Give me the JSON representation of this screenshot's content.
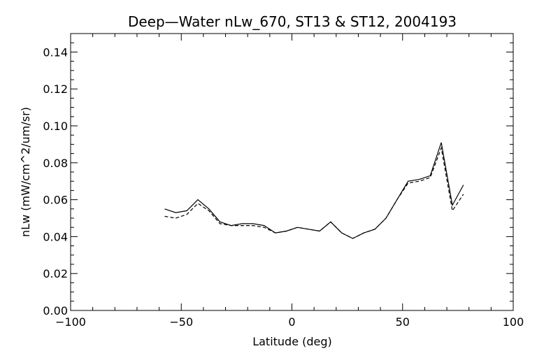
{
  "chart_data": {
    "type": "line",
    "title": "Deep—Water nLw_670, ST13 & ST12, 2004193",
    "xlabel": "Latitude (deg)",
    "ylabel": "nLw (mW/cm^2/um/sr)",
    "xlim": [
      -100,
      100
    ],
    "ylim": [
      0.0,
      0.15
    ],
    "x_ticks": [
      -100,
      -50,
      0,
      50,
      100
    ],
    "x_tick_labels": [
      "−100",
      "−50",
      "0",
      "50",
      "100"
    ],
    "y_ticks": [
      0.0,
      0.02,
      0.04,
      0.06,
      0.08,
      0.1,
      0.12,
      0.14
    ],
    "y_tick_labels": [
      "0.00",
      "0.02",
      "0.04",
      "0.06",
      "0.08",
      "0.10",
      "0.12",
      "0.14"
    ],
    "grid": false,
    "series": [
      {
        "style": "solid",
        "color": "#000000",
        "x": [
          -57.5,
          -52.5,
          -47.5,
          -42.5,
          -37.5,
          -32.5,
          -27.5,
          -22.5,
          -17.5,
          -12.5,
          -7.5,
          -2.5,
          2.5,
          7.5,
          12.5,
          17.5,
          22.5,
          27.5,
          32.5,
          37.5,
          42.5,
          47.5,
          52.5,
          57.5,
          62.5,
          67.5,
          72.5,
          77.5
        ],
        "values": [
          0.055,
          0.053,
          0.054,
          0.06,
          0.055,
          0.048,
          0.046,
          0.047,
          0.047,
          0.046,
          0.042,
          0.043,
          0.045,
          0.044,
          0.043,
          0.048,
          0.042,
          0.039,
          0.042,
          0.044,
          0.05,
          0.06,
          0.07,
          0.071,
          0.073,
          0.091,
          0.057,
          0.068
        ]
      },
      {
        "style": "dashed",
        "color": "#000000",
        "x": [
          -57.5,
          -52.5,
          -47.5,
          -42.5,
          -37.5,
          -32.5,
          -27.5,
          -22.5,
          -17.5,
          -12.5,
          -7.5,
          -2.5,
          2.5,
          7.5,
          12.5,
          17.5,
          22.5,
          27.5,
          32.5,
          37.5,
          42.5,
          47.5,
          52.5,
          57.5,
          62.5,
          67.5,
          72.5,
          77.5
        ],
        "values": [
          0.051,
          0.05,
          0.052,
          0.058,
          0.054,
          0.047,
          0.046,
          0.046,
          0.046,
          0.045,
          0.042,
          0.043,
          0.045,
          0.044,
          0.043,
          0.048,
          0.042,
          0.039,
          0.042,
          0.044,
          0.05,
          0.06,
          0.069,
          0.07,
          0.072,
          0.088,
          0.054,
          0.063
        ]
      }
    ]
  }
}
